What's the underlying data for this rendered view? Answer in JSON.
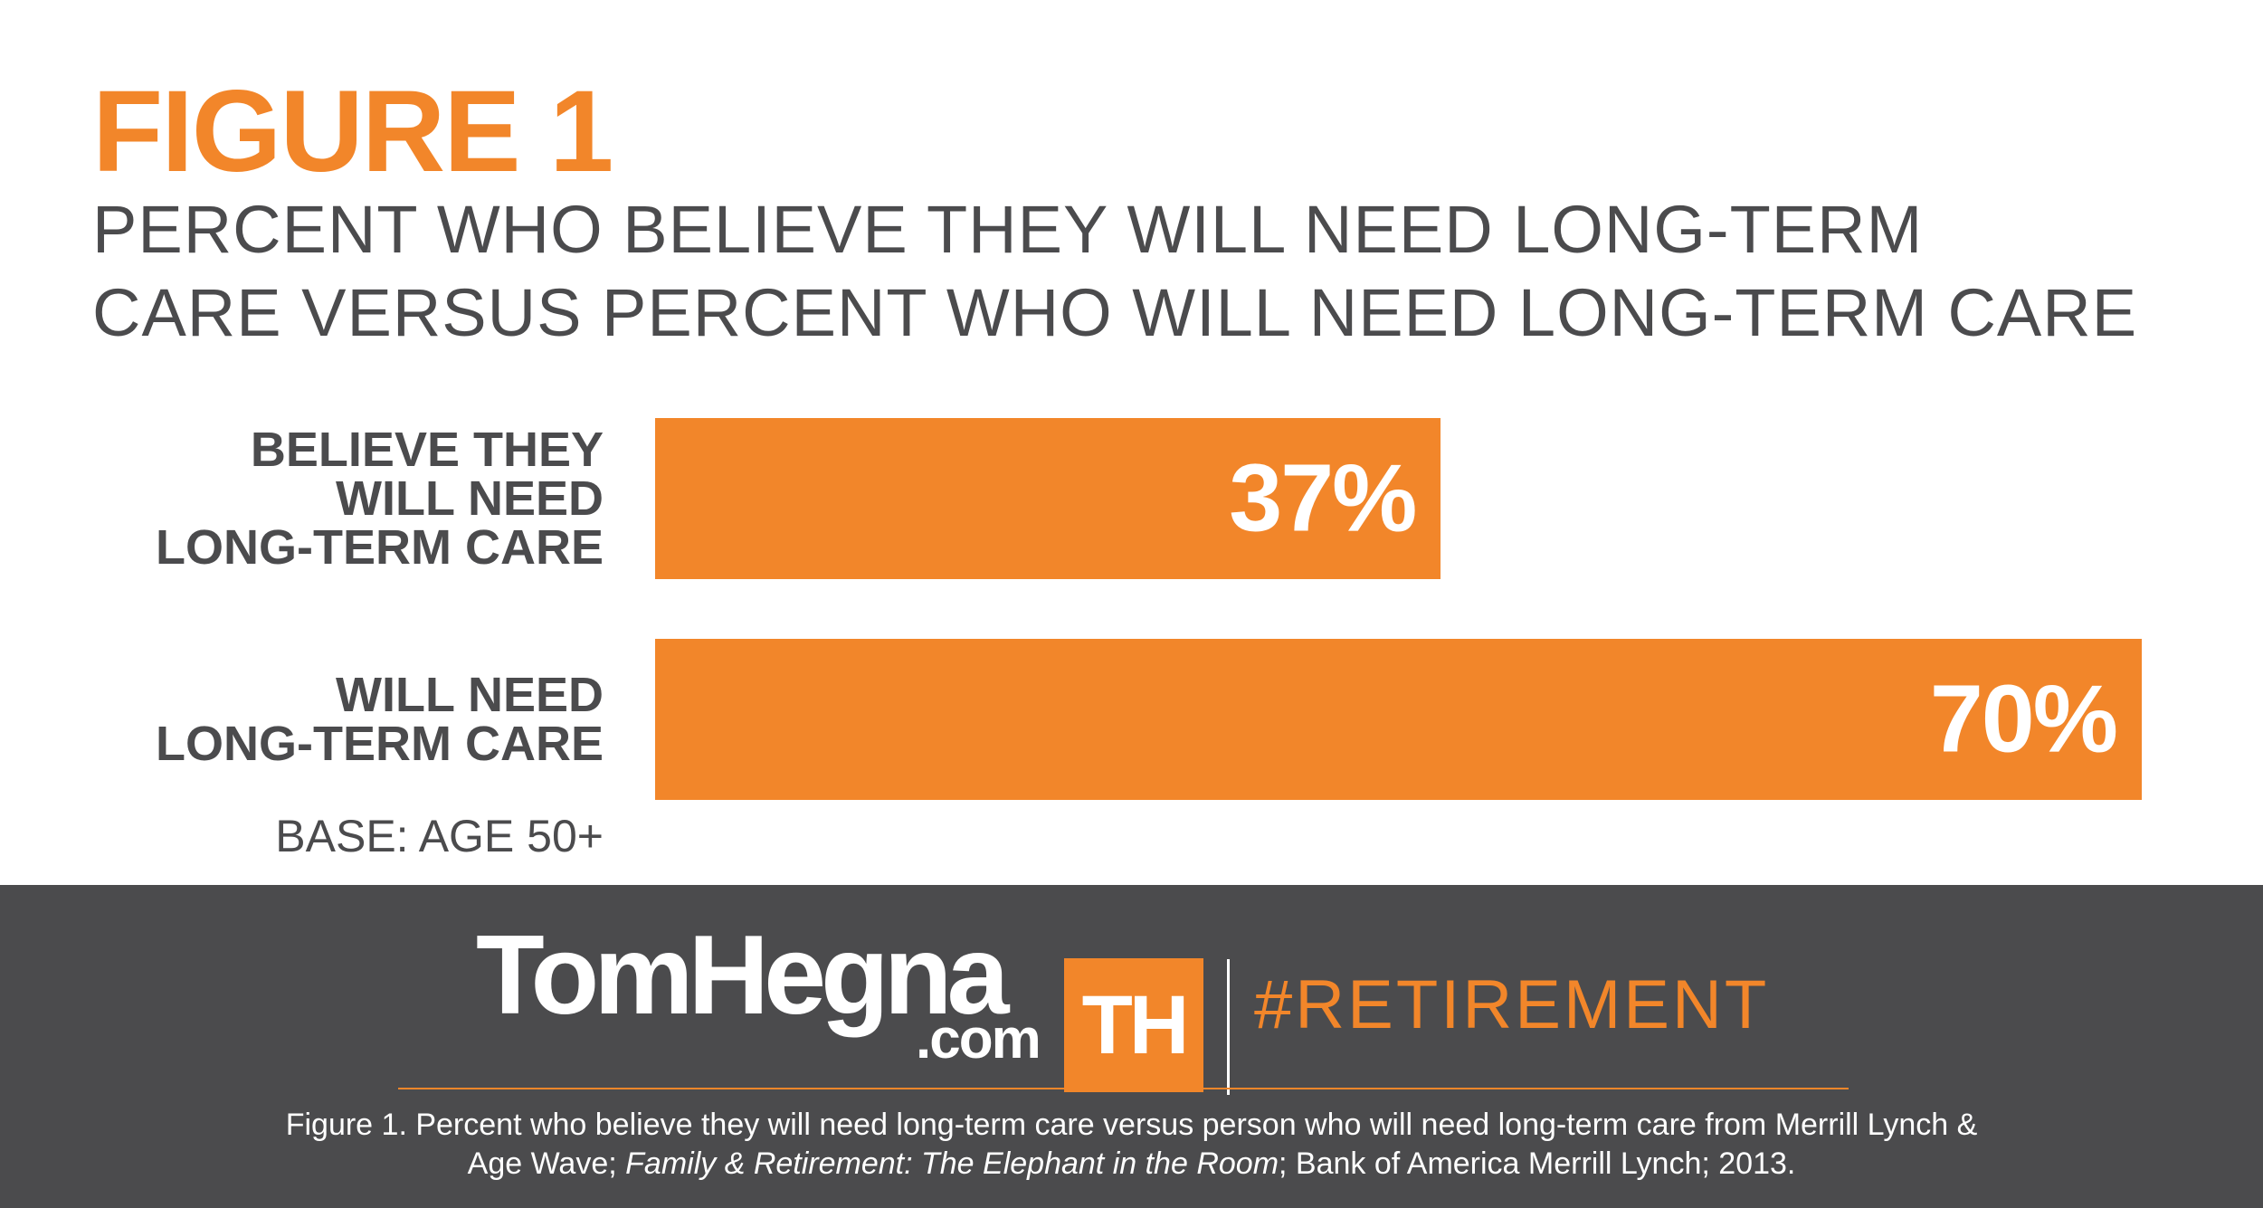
{
  "figure_label": "FIGURE 1",
  "subtitle_lines": [
    "PERCENT WHO BELIEVE THEY WILL NEED LONG-TERM",
    "CARE VERSUS PERCENT WHO WILL NEED LONG-TERM CARE"
  ],
  "base_note": "BASE: AGE 50+",
  "colors": {
    "accent": "#f2862a",
    "dark_gray": "#4b4b4d",
    "white": "#ffffff"
  },
  "chart_data": {
    "type": "bar",
    "orientation": "horizontal",
    "title": "PERCENT WHO BELIEVE THEY WILL NEED LONG-TERM CARE VERSUS PERCENT WHO WILL NEED LONG-TERM CARE",
    "categories": [
      "BELIEVE THEY WILL NEED LONG-TERM CARE",
      "WILL NEED LONG-TERM CARE"
    ],
    "category_label_lines": [
      [
        "BELIEVE THEY",
        "WILL NEED",
        "LONG-TERM CARE"
      ],
      [
        "WILL NEED",
        "LONG-TERM CARE"
      ]
    ],
    "values": [
      37,
      70
    ],
    "value_labels": [
      "37%",
      "70%"
    ],
    "unit": "%",
    "xlim": [
      0,
      70
    ],
    "grid": false,
    "legend": "none"
  },
  "footer": {
    "brand_name": "TomHegna",
    "brand_domain": ".com",
    "logo_mark": "TH",
    "hashtag": "#RETIREMENT",
    "caption_line1": "Figure 1. Percent who believe they will need long-term care versus person who will need long-term care from Merrill Lynch &",
    "caption_line2_pre": "Age Wave; ",
    "caption_line2_italic": "Family & Retirement: The Elephant in the Room",
    "caption_line2_post": "; Bank of America Merrill Lynch; 2013."
  }
}
